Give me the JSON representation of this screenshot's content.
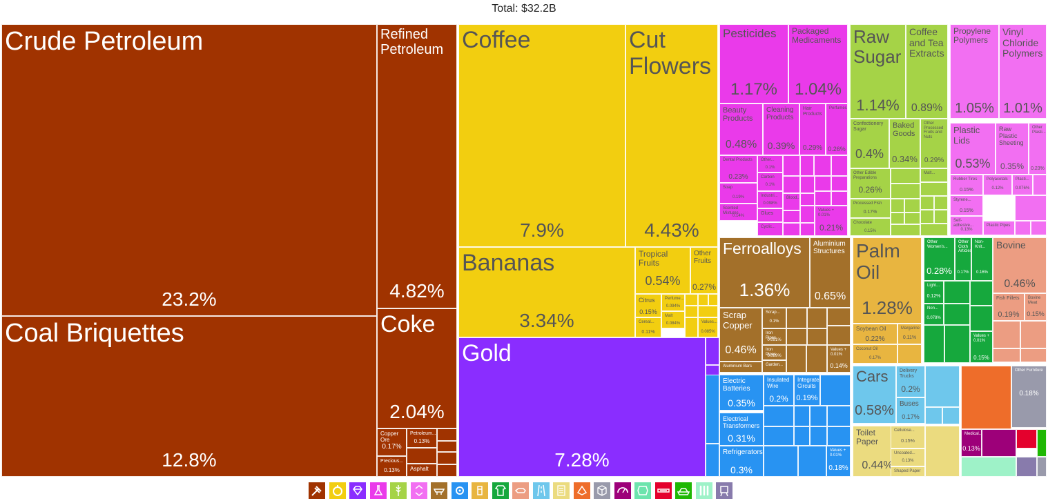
{
  "header": {
    "total": "Total: $32.2B"
  },
  "colors": {
    "mineral": "#a03300",
    "vegetable": "#f2ce10",
    "precious": "#8a2dff",
    "chemical": "#ea3aea",
    "foodstuff": "#a5d347",
    "plastic": "#f26ff2",
    "metal": "#a3702a",
    "machine": "#2893f2",
    "animalfat": "#e8b540",
    "textile": "#16a83d",
    "animal": "#ec9d82",
    "transport": "#6ec7ec",
    "paper": "#ebdb7f",
    "stone": "#ee6d2a",
    "misc": "#999aab",
    "instrument": "#9d0079",
    "hides": "#6de4ad",
    "weapons": "#e4012d",
    "wood": "#1fb804",
    "footwear": "#9ef2c8",
    "art": "#887bac"
  },
  "chart_data": {
    "type": "treemap",
    "title": "Total: $32.2B",
    "items": [
      {
        "name": "Crude Petroleum",
        "pct": "23.2%",
        "group": "mineral"
      },
      {
        "name": "Coal Briquettes",
        "pct": "12.8%",
        "group": "mineral"
      },
      {
        "name": "Refined Petroleum",
        "pct": "4.82%",
        "group": "mineral"
      },
      {
        "name": "Coke",
        "pct": "2.04%",
        "group": "mineral"
      },
      {
        "name": "Copper Ore",
        "pct": "0.17%",
        "group": "mineral"
      },
      {
        "name": "Petroleum...",
        "pct": "0.13%",
        "group": "mineral"
      },
      {
        "name": "Precious...",
        "pct": "0.13%",
        "group": "mineral"
      },
      {
        "name": "Asphalt",
        "pct": "",
        "group": "mineral"
      },
      {
        "name": "Coffee",
        "pct": "7.9%",
        "group": "vegetable"
      },
      {
        "name": "Cut Flowers",
        "pct": "4.43%",
        "group": "vegetable"
      },
      {
        "name": "Bananas",
        "pct": "3.34%",
        "group": "vegetable"
      },
      {
        "name": "Tropical Fruits",
        "pct": "0.54%",
        "group": "vegetable"
      },
      {
        "name": "Other Fruits",
        "pct": "0.27%",
        "group": "vegetable"
      },
      {
        "name": "Citrus",
        "pct": "0.15%",
        "group": "vegetable"
      },
      {
        "name": "Perfume...",
        "pct": "0.094%",
        "group": "vegetable"
      },
      {
        "name": "Cereal...",
        "pct": "0.11%",
        "group": "vegetable"
      },
      {
        "name": "Malt",
        "pct": "0.084%",
        "group": "vegetable"
      },
      {
        "name": "Values...",
        "pct": "0.085%",
        "group": "vegetable"
      },
      {
        "name": "Gold",
        "pct": "7.28%",
        "group": "precious"
      },
      {
        "name": "Pesticides",
        "pct": "1.17%",
        "group": "chemical"
      },
      {
        "name": "Packaged Medicaments",
        "pct": "1.04%",
        "group": "chemical"
      },
      {
        "name": "Beauty Products",
        "pct": "0.48%",
        "group": "chemical"
      },
      {
        "name": "Cleaning Products",
        "pct": "0.39%",
        "group": "chemical"
      },
      {
        "name": "Hair Products",
        "pct": "0.29%",
        "group": "chemical"
      },
      {
        "name": "Perfumes",
        "pct": "0.26%",
        "group": "chemical"
      },
      {
        "name": "Dental Products",
        "pct": "0.23%",
        "group": "chemical"
      },
      {
        "name": "Other...",
        "pct": "0.1%",
        "group": "chemical"
      },
      {
        "name": "Carbon",
        "pct": "0.1%",
        "group": "chemical"
      },
      {
        "name": "Soap",
        "pct": "0.19%",
        "group": "chemical"
      },
      {
        "name": "Industri...",
        "pct": "0.098%",
        "group": "chemical"
      },
      {
        "name": "Scented Mixtures",
        "pct": "0.14%",
        "group": "chemical"
      },
      {
        "name": "Glues",
        "pct": "",
        "group": "chemical"
      },
      {
        "name": "Cyclic...",
        "pct": "",
        "group": "chemical"
      },
      {
        "name": "Blood...",
        "pct": "",
        "group": "chemical"
      },
      {
        "name": "Values + 0.01%",
        "pct": "0.21%",
        "group": "chemical"
      },
      {
        "name": "Raw Sugar",
        "pct": "1.14%",
        "group": "foodstuff"
      },
      {
        "name": "Coffee and Tea Extracts",
        "pct": "0.89%",
        "group": "foodstuff"
      },
      {
        "name": "Confectionery Sugar",
        "pct": "0.4%",
        "group": "foodstuff"
      },
      {
        "name": "Baked Goods",
        "pct": "0.34%",
        "group": "foodstuff"
      },
      {
        "name": "Other Processed Fruits and Nuts",
        "pct": "0.29%",
        "group": "foodstuff"
      },
      {
        "name": "Other Edible Preparations",
        "pct": "0.26%",
        "group": "foodstuff"
      },
      {
        "name": "Processed Fish",
        "pct": "0.17%",
        "group": "foodstuff"
      },
      {
        "name": "Chocolate",
        "pct": "0.15%",
        "group": "foodstuff"
      },
      {
        "name": "Malt...",
        "pct": "",
        "group": "foodstuff"
      },
      {
        "name": "Propylene Polymers",
        "pct": "1.05%",
        "group": "plastic"
      },
      {
        "name": "Vinyl Chloride Polymers",
        "pct": "1.01%",
        "group": "plastic"
      },
      {
        "name": "Plastic Lids",
        "pct": "0.53%",
        "group": "plastic"
      },
      {
        "name": "Raw Plastic Sheeting",
        "pct": "0.35%",
        "group": "plastic"
      },
      {
        "name": "Other Plasti...",
        "pct": "0.23%",
        "group": "plastic"
      },
      {
        "name": "Rubber Tires",
        "pct": "0.15%",
        "group": "plastic"
      },
      {
        "name": "Polyacetals",
        "pct": "0.12%",
        "group": "plastic"
      },
      {
        "name": "Plasti...",
        "pct": "0.076%",
        "group": "plastic"
      },
      {
        "name": "Styrene...",
        "pct": "0.15%",
        "group": "plastic"
      },
      {
        "name": "Self-adhesive...",
        "pct": "0.13%",
        "group": "plastic"
      },
      {
        "name": "Plastic Pipes",
        "pct": "",
        "group": "plastic"
      },
      {
        "name": "Ferroalloys",
        "pct": "1.36%",
        "group": "metal"
      },
      {
        "name": "Aluminium Structures",
        "pct": "0.65%",
        "group": "metal"
      },
      {
        "name": "Scrap Copper",
        "pct": "0.46%",
        "group": "metal"
      },
      {
        "name": "Scrap...",
        "pct": "0.1%",
        "group": "metal"
      },
      {
        "name": "Iron Pipes",
        "pct": "0.091%",
        "group": "metal"
      },
      {
        "name": "Iron Pipes",
        "pct": "0.089%",
        "group": "metal"
      },
      {
        "name": "Garden...",
        "pct": "",
        "group": "metal"
      },
      {
        "name": "Aluminium Bars",
        "pct": "",
        "group": "metal"
      },
      {
        "name": "Values + 0.01%",
        "pct": "0.14%",
        "group": "metal"
      },
      {
        "name": "Electric Batteries",
        "pct": "0.35%",
        "group": "machine"
      },
      {
        "name": "Insulated Wire",
        "pct": "0.2%",
        "group": "machine"
      },
      {
        "name": "Integrated Circuits",
        "pct": "0.19%",
        "group": "machine"
      },
      {
        "name": "Electrical Transformers",
        "pct": "0.31%",
        "group": "machine"
      },
      {
        "name": "Refrigerators",
        "pct": "0.3%",
        "group": "machine"
      },
      {
        "name": "Values + 0.01%",
        "pct": "0.18%",
        "group": "machine"
      },
      {
        "name": "Palm Oil",
        "pct": "1.28%",
        "group": "animalfat"
      },
      {
        "name": "Soybean Oil",
        "pct": "0.22%",
        "group": "animalfat"
      },
      {
        "name": "Margarine",
        "pct": "0.11%",
        "group": "animalfat"
      },
      {
        "name": "Coconut Oil",
        "pct": "0.17%",
        "group": "animalfat"
      },
      {
        "name": "Other Women's...",
        "pct": "0.28%",
        "group": "textile"
      },
      {
        "name": "Other Cloth Articles",
        "pct": "0.17%",
        "group": "textile"
      },
      {
        "name": "Non-Knit...",
        "pct": "0.16%",
        "group": "textile"
      },
      {
        "name": "Light...",
        "pct": "0.12%",
        "group": "textile"
      },
      {
        "name": "Non...",
        "pct": "0.078%",
        "group": "textile"
      },
      {
        "name": "Values + 0.01%",
        "pct": "0.15%",
        "group": "textile"
      },
      {
        "name": "Bovine",
        "pct": "0.46%",
        "group": "animal"
      },
      {
        "name": "Fish Fillets",
        "pct": "0.19%",
        "group": "animal"
      },
      {
        "name": "Bovine Meat",
        "pct": "0.15%",
        "group": "animal"
      },
      {
        "name": "Cars",
        "pct": "0.58%",
        "group": "transport"
      },
      {
        "name": "Delivery Trucks",
        "pct": "0.2%",
        "group": "transport"
      },
      {
        "name": "Buses",
        "pct": "0.17%",
        "group": "transport"
      },
      {
        "name": "Toilet Paper",
        "pct": "0.44%",
        "group": "paper"
      },
      {
        "name": "Cellulose...",
        "pct": "0.15%",
        "group": "paper"
      },
      {
        "name": "Uncoated...",
        "pct": "0.13%",
        "group": "paper"
      },
      {
        "name": "Shaped Paper",
        "pct": "",
        "group": "paper"
      },
      {
        "name": "Other Furniture",
        "pct": "0.18%",
        "group": "misc"
      },
      {
        "name": "Medical...",
        "pct": "0.13%",
        "group": "instrument"
      }
    ]
  },
  "legend": [
    {
      "icon": "mineral-products-icon",
      "group": "mineral"
    },
    {
      "icon": "vegetable-products-icon",
      "group": "vegetable"
    },
    {
      "icon": "precious-metals-icon",
      "group": "precious"
    },
    {
      "icon": "chemical-products-icon",
      "group": "chemical"
    },
    {
      "icon": "foodstuffs-icon",
      "group": "foodstuff"
    },
    {
      "icon": "plastics-rubbers-icon",
      "group": "plastic"
    },
    {
      "icon": "metals-icon",
      "group": "metal"
    },
    {
      "icon": "machines-icon",
      "group": "machine"
    },
    {
      "icon": "animal-vegetable-fats-icon",
      "group": "animalfat"
    },
    {
      "icon": "textiles-icon",
      "group": "textile"
    },
    {
      "icon": "animal-products-icon",
      "group": "animal"
    },
    {
      "icon": "transportation-icon",
      "group": "transport"
    },
    {
      "icon": "paper-goods-icon",
      "group": "paper"
    },
    {
      "icon": "stone-glass-icon",
      "group": "stone"
    },
    {
      "icon": "miscellaneous-icon",
      "group": "misc"
    },
    {
      "icon": "instruments-icon",
      "group": "instrument"
    },
    {
      "icon": "animal-hides-icon",
      "group": "hides"
    },
    {
      "icon": "weapons-icon",
      "group": "weapons"
    },
    {
      "icon": "wood-products-icon",
      "group": "wood"
    },
    {
      "icon": "footwear-headwear-icon",
      "group": "footwear"
    },
    {
      "icon": "arts-antiques-icon",
      "group": "art"
    }
  ]
}
